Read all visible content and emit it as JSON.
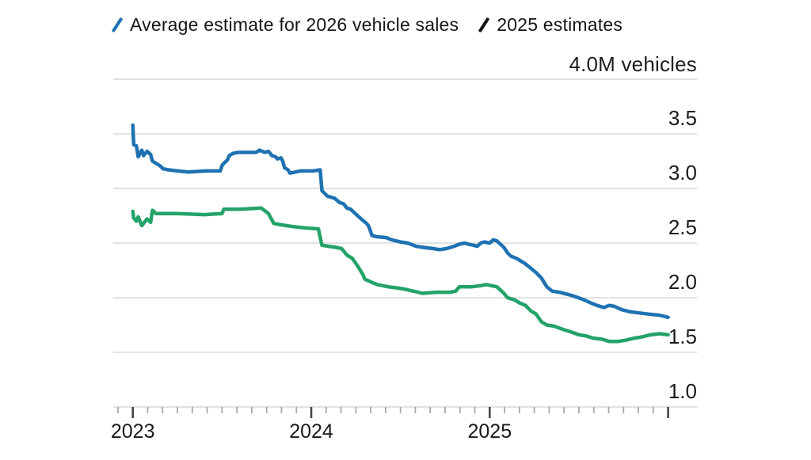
{
  "legend": {
    "items": [
      {
        "label": "Average estimate for 2026 vehicle sales",
        "marker": "slash-icon",
        "marker_color": "#1f72b2"
      },
      {
        "label": "2025 estimates",
        "marker": "slash-icon",
        "marker_color": "#151515"
      }
    ]
  },
  "chart_data": {
    "type": "line",
    "title": "",
    "top_axis_label": "4.0M vehicles",
    "ylabel": "M vehicles",
    "xlabel": "",
    "ylim": [
      1.0,
      4.0
    ],
    "x_range": [
      2022.99,
      2026.0
    ],
    "grid": true,
    "legend_position": "top",
    "y_gridline_values": [
      4.0,
      3.5,
      3.0,
      2.5,
      2.0,
      1.5,
      1.0
    ],
    "y_tick_labels": [
      {
        "value": 3.5,
        "label": "3.5"
      },
      {
        "value": 3.0,
        "label": "3.0"
      },
      {
        "value": 2.5,
        "label": "2.5"
      },
      {
        "value": 2.0,
        "label": "2.0"
      },
      {
        "value": 1.5,
        "label": "1.5"
      },
      {
        "value": 1.0,
        "label": "1.0"
      }
    ],
    "x_ticks": [
      {
        "value": 2023,
        "label": "2023"
      },
      {
        "value": 2024,
        "label": "2024"
      },
      {
        "value": 2025,
        "label": "2025"
      }
    ],
    "x_minor_tick_interval_years": 0.0833,
    "series": [
      {
        "name": "Average estimate for 2026 vehicle sales",
        "color": "#1f72b2",
        "points": [
          [
            2023.0,
            3.58
          ],
          [
            2023.005,
            3.4
          ],
          [
            2023.02,
            3.39
          ],
          [
            2023.03,
            3.29
          ],
          [
            2023.05,
            3.35
          ],
          [
            2023.06,
            3.3
          ],
          [
            2023.08,
            3.34
          ],
          [
            2023.1,
            3.31
          ],
          [
            2023.11,
            3.25
          ],
          [
            2023.13,
            3.23
          ],
          [
            2023.15,
            3.21
          ],
          [
            2023.17,
            3.18
          ],
          [
            2023.2,
            3.17
          ],
          [
            2023.25,
            3.16
          ],
          [
            2023.31,
            3.15
          ],
          [
            2023.41,
            3.16
          ],
          [
            2023.49,
            3.16
          ],
          [
            2023.5,
            3.21
          ],
          [
            2023.51,
            3.23
          ],
          [
            2023.53,
            3.26
          ],
          [
            2023.54,
            3.3
          ],
          [
            2023.56,
            3.32
          ],
          [
            2023.59,
            3.33
          ],
          [
            2023.69,
            3.33
          ],
          [
            2023.71,
            3.35
          ],
          [
            2023.74,
            3.33
          ],
          [
            2023.76,
            3.34
          ],
          [
            2023.78,
            3.3
          ],
          [
            2023.8,
            3.29
          ],
          [
            2023.81,
            3.27
          ],
          [
            2023.83,
            3.28
          ],
          [
            2023.84,
            3.25
          ],
          [
            2023.85,
            3.19
          ],
          [
            2023.87,
            3.17
          ],
          [
            2023.88,
            3.14
          ],
          [
            2023.94,
            3.16
          ],
          [
            2024.01,
            3.16
          ],
          [
            2024.05,
            3.17
          ],
          [
            2024.06,
            2.98
          ],
          [
            2024.09,
            2.93
          ],
          [
            2024.13,
            2.91
          ],
          [
            2024.16,
            2.87
          ],
          [
            2024.18,
            2.86
          ],
          [
            2024.2,
            2.82
          ],
          [
            2024.22,
            2.81
          ],
          [
            2024.24,
            2.78
          ],
          [
            2024.26,
            2.75
          ],
          [
            2024.28,
            2.72
          ],
          [
            2024.31,
            2.68
          ],
          [
            2024.32,
            2.66
          ],
          [
            2024.33,
            2.62
          ],
          [
            2024.34,
            2.57
          ],
          [
            2024.36,
            2.56
          ],
          [
            2024.42,
            2.55
          ],
          [
            2024.45,
            2.53
          ],
          [
            2024.5,
            2.51
          ],
          [
            2024.54,
            2.5
          ],
          [
            2024.59,
            2.47
          ],
          [
            2024.63,
            2.46
          ],
          [
            2024.68,
            2.45
          ],
          [
            2024.72,
            2.44
          ],
          [
            2024.76,
            2.45
          ],
          [
            2024.8,
            2.47
          ],
          [
            2024.83,
            2.49
          ],
          [
            2024.86,
            2.5
          ],
          [
            2024.88,
            2.49
          ],
          [
            2024.91,
            2.48
          ],
          [
            2024.93,
            2.47
          ],
          [
            2024.95,
            2.5
          ],
          [
            2024.97,
            2.51
          ],
          [
            2025.0,
            2.5
          ],
          [
            2025.02,
            2.53
          ],
          [
            2025.04,
            2.52
          ],
          [
            2025.06,
            2.49
          ],
          [
            2025.08,
            2.46
          ],
          [
            2025.1,
            2.41
          ],
          [
            2025.12,
            2.38
          ],
          [
            2025.15,
            2.36
          ],
          [
            2025.2,
            2.31
          ],
          [
            2025.23,
            2.27
          ],
          [
            2025.26,
            2.23
          ],
          [
            2025.29,
            2.18
          ],
          [
            2025.32,
            2.1
          ],
          [
            2025.35,
            2.06
          ],
          [
            2025.39,
            2.05
          ],
          [
            2025.44,
            2.03
          ],
          [
            2025.48,
            2.01
          ],
          [
            2025.53,
            1.98
          ],
          [
            2025.57,
            1.95
          ],
          [
            2025.6,
            1.93
          ],
          [
            2025.64,
            1.91
          ],
          [
            2025.67,
            1.93
          ],
          [
            2025.7,
            1.92
          ],
          [
            2025.74,
            1.89
          ],
          [
            2025.79,
            1.87
          ],
          [
            2025.84,
            1.86
          ],
          [
            2025.89,
            1.85
          ],
          [
            2025.95,
            1.84
          ],
          [
            2026.0,
            1.82
          ]
        ]
      },
      {
        "name": "2025 estimates",
        "color": "#23a368",
        "points": [
          [
            2023.0,
            2.79
          ],
          [
            2023.005,
            2.73
          ],
          [
            2023.02,
            2.7
          ],
          [
            2023.03,
            2.74
          ],
          [
            2023.05,
            2.66
          ],
          [
            2023.08,
            2.72
          ],
          [
            2023.1,
            2.69
          ],
          [
            2023.11,
            2.8
          ],
          [
            2023.13,
            2.77
          ],
          [
            2023.25,
            2.77
          ],
          [
            2023.4,
            2.76
          ],
          [
            2023.5,
            2.77
          ],
          [
            2023.51,
            2.81
          ],
          [
            2023.6,
            2.81
          ],
          [
            2023.72,
            2.82
          ],
          [
            2023.76,
            2.77
          ],
          [
            2023.79,
            2.68
          ],
          [
            2023.82,
            2.67
          ],
          [
            2023.9,
            2.65
          ],
          [
            2023.96,
            2.64
          ],
          [
            2024.04,
            2.63
          ],
          [
            2024.06,
            2.48
          ],
          [
            2024.1,
            2.47
          ],
          [
            2024.14,
            2.46
          ],
          [
            2024.17,
            2.45
          ],
          [
            2024.18,
            2.43
          ],
          [
            2024.2,
            2.39
          ],
          [
            2024.23,
            2.36
          ],
          [
            2024.26,
            2.29
          ],
          [
            2024.29,
            2.21
          ],
          [
            2024.3,
            2.17
          ],
          [
            2024.34,
            2.14
          ],
          [
            2024.37,
            2.12
          ],
          [
            2024.43,
            2.1
          ],
          [
            2024.48,
            2.09
          ],
          [
            2024.52,
            2.08
          ],
          [
            2024.57,
            2.06
          ],
          [
            2024.6,
            2.05
          ],
          [
            2024.62,
            2.04
          ],
          [
            2024.7,
            2.05
          ],
          [
            2024.78,
            2.05
          ],
          [
            2024.81,
            2.06
          ],
          [
            2024.83,
            2.1
          ],
          [
            2024.9,
            2.1
          ],
          [
            2024.95,
            2.11
          ],
          [
            2024.98,
            2.12
          ],
          [
            2025.01,
            2.11
          ],
          [
            2025.04,
            2.1
          ],
          [
            2025.06,
            2.07
          ],
          [
            2025.08,
            2.04
          ],
          [
            2025.1,
            2.0
          ],
          [
            2025.14,
            1.98
          ],
          [
            2025.17,
            1.95
          ],
          [
            2025.2,
            1.93
          ],
          [
            2025.23,
            1.88
          ],
          [
            2025.26,
            1.85
          ],
          [
            2025.29,
            1.78
          ],
          [
            2025.32,
            1.75
          ],
          [
            2025.36,
            1.74
          ],
          [
            2025.41,
            1.71
          ],
          [
            2025.45,
            1.69
          ],
          [
            2025.5,
            1.66
          ],
          [
            2025.54,
            1.65
          ],
          [
            2025.58,
            1.63
          ],
          [
            2025.63,
            1.62
          ],
          [
            2025.67,
            1.6
          ],
          [
            2025.72,
            1.6
          ],
          [
            2025.76,
            1.61
          ],
          [
            2025.81,
            1.63
          ],
          [
            2025.85,
            1.64
          ],
          [
            2025.9,
            1.66
          ],
          [
            2025.95,
            1.67
          ],
          [
            2026.0,
            1.66
          ]
        ]
      }
    ]
  },
  "colors": {
    "background": "#ffffff",
    "gridline": "#d9d9d9",
    "axis_minor_tick": "#a8a8a8",
    "axis_major_tick": "#474747",
    "text": "#1a1a1a"
  }
}
